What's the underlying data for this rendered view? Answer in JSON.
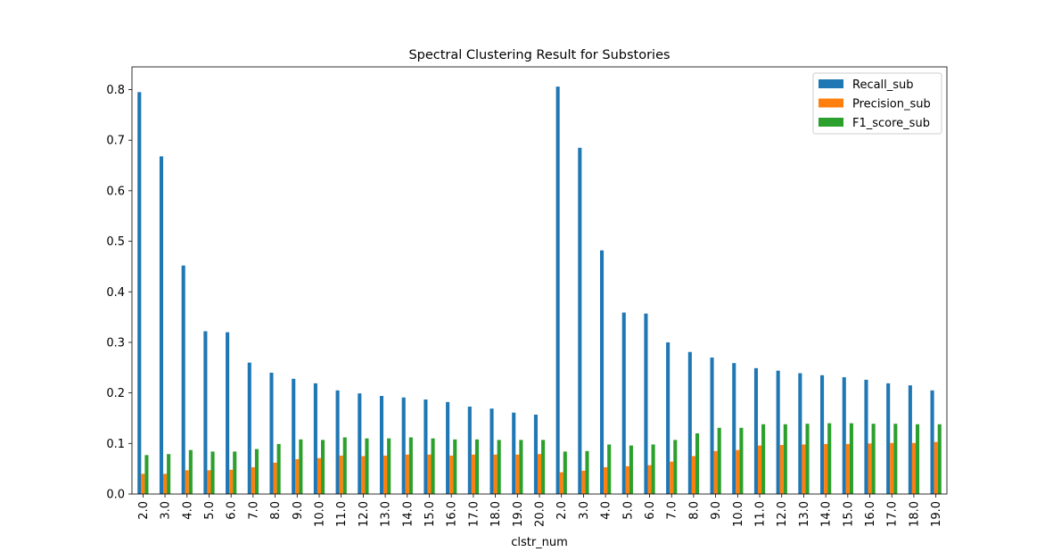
{
  "chart_data": {
    "type": "bar",
    "title": "Spectral Clustering Result for Substories",
    "xlabel": "clstr_num",
    "ylabel": "",
    "ylim": [
      0,
      0.845
    ],
    "yticks": [
      0.0,
      0.1,
      0.2,
      0.3,
      0.4,
      0.5,
      0.6,
      0.7,
      0.8
    ],
    "ytick_labels": [
      "0.0",
      "0.1",
      "0.2",
      "0.3",
      "0.4",
      "0.5",
      "0.6",
      "0.7",
      "0.8"
    ],
    "grid": false,
    "legend_position": "top-right",
    "categories": [
      "2.0",
      "3.0",
      "4.0",
      "5.0",
      "6.0",
      "7.0",
      "8.0",
      "9.0",
      "10.0",
      "11.0",
      "12.0",
      "13.0",
      "14.0",
      "15.0",
      "16.0",
      "17.0",
      "18.0",
      "19.0",
      "20.0",
      "2.0",
      "3.0",
      "4.0",
      "5.0",
      "6.0",
      "7.0",
      "8.0",
      "9.0",
      "10.0",
      "11.0",
      "12.0",
      "13.0",
      "14.0",
      "15.0",
      "16.0",
      "17.0",
      "18.0",
      "19.0"
    ],
    "series": [
      {
        "name": "Recall_sub",
        "color": "#1f77b4",
        "values": [
          0.795,
          0.668,
          0.452,
          0.322,
          0.32,
          0.26,
          0.24,
          0.228,
          0.219,
          0.205,
          0.199,
          0.194,
          0.191,
          0.187,
          0.182,
          0.173,
          0.169,
          0.161,
          0.157,
          0.806,
          0.685,
          0.482,
          0.359,
          0.357,
          0.3,
          0.281,
          0.27,
          0.259,
          0.249,
          0.244,
          0.239,
          0.235,
          0.231,
          0.226,
          0.219,
          0.215,
          0.205
        ]
      },
      {
        "name": "Precision_sub",
        "color": "#ff7f0e",
        "values": [
          0.04,
          0.04,
          0.047,
          0.047,
          0.048,
          0.053,
          0.062,
          0.069,
          0.071,
          0.076,
          0.075,
          0.076,
          0.078,
          0.078,
          0.076,
          0.078,
          0.078,
          0.078,
          0.079,
          0.043,
          0.046,
          0.053,
          0.055,
          0.057,
          0.064,
          0.075,
          0.085,
          0.087,
          0.096,
          0.097,
          0.098,
          0.099,
          0.099,
          0.1,
          0.101,
          0.101,
          0.103
        ]
      },
      {
        "name": "F1_score_sub",
        "color": "#2ca02c",
        "values": [
          0.077,
          0.079,
          0.087,
          0.084,
          0.084,
          0.089,
          0.099,
          0.108,
          0.107,
          0.112,
          0.11,
          0.11,
          0.112,
          0.11,
          0.108,
          0.108,
          0.107,
          0.107,
          0.107,
          0.084,
          0.085,
          0.098,
          0.096,
          0.098,
          0.107,
          0.12,
          0.131,
          0.131,
          0.138,
          0.138,
          0.139,
          0.14,
          0.14,
          0.139,
          0.139,
          0.138,
          0.138
        ]
      }
    ]
  }
}
